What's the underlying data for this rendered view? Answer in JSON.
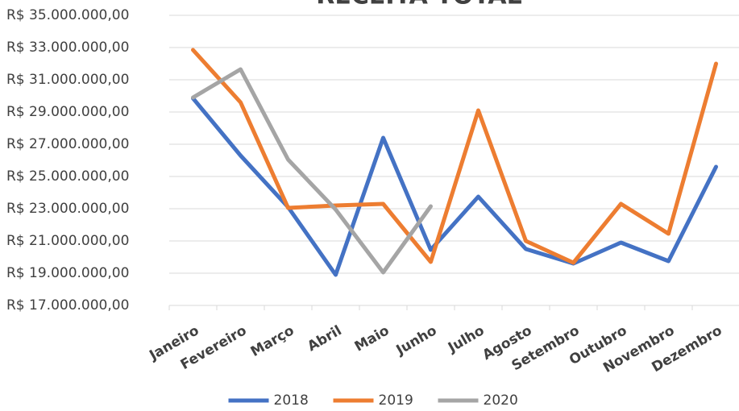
{
  "chart_data": {
    "type": "line",
    "title": "RECEITA TOTAL",
    "categories": [
      "Janeiro",
      "Fevereiro",
      "Março",
      "Abril",
      "Maio",
      "Junho",
      "Julho",
      "Agosto",
      "Setembro",
      "Outubro",
      "Novembro",
      "Dezembro"
    ],
    "series": [
      {
        "name": "2018",
        "color": "#4472c4",
        "values": [
          29850000,
          26300000,
          23100000,
          18900000,
          27400000,
          20450000,
          23750000,
          20500000,
          19600000,
          20900000,
          19750000,
          25600000
        ]
      },
      {
        "name": "2019",
        "color": "#ed7d31",
        "values": [
          32850000,
          29600000,
          23050000,
          23200000,
          23300000,
          19700000,
          29100000,
          21000000,
          19650000,
          23300000,
          21450000,
          32000000
        ]
      },
      {
        "name": "2020",
        "color": "#a5a5a5",
        "values": [
          29900000,
          31650000,
          26050000,
          22950000,
          19050000,
          23150000,
          null,
          null,
          null,
          null,
          null,
          null
        ]
      }
    ],
    "ylim": [
      17000000,
      35000000
    ],
    "yticks": [
      {
        "value": 17000000,
        "label": "R$ 17.000.000,00"
      },
      {
        "value": 19000000,
        "label": "R$ 19.000.000,00"
      },
      {
        "value": 21000000,
        "label": "R$ 21.000.000,00"
      },
      {
        "value": 23000000,
        "label": "R$ 23.000.000,00"
      },
      {
        "value": 25000000,
        "label": "R$ 25.000.000,00"
      },
      {
        "value": 27000000,
        "label": "R$ 27.000.000,00"
      },
      {
        "value": 29000000,
        "label": "R$ 29.000.000,00"
      },
      {
        "value": 31000000,
        "label": "R$ 31.000.000,00"
      },
      {
        "value": 33000000,
        "label": "R$ 33.000.000,00"
      },
      {
        "value": 35000000,
        "label": "R$ 35.000.000,00"
      }
    ],
    "grid": true,
    "legend": "bottom"
  }
}
